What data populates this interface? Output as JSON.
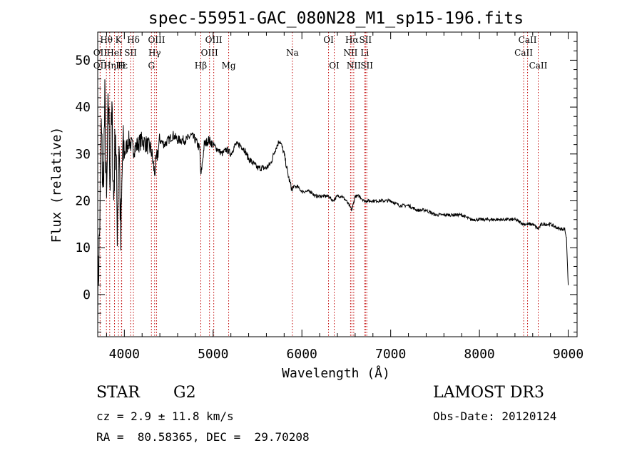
{
  "chart_data": {
    "type": "line",
    "title": "spec-55951-GAC_080N28_M1_sp15-196.fits",
    "xlabel": "Wavelength (Å)",
    "ylabel": "Flux (relative)",
    "xlim": [
      3700,
      9100
    ],
    "ylim": [
      -9,
      56
    ],
    "xticks": [
      4000,
      5000,
      6000,
      7000,
      8000,
      9000
    ],
    "yticks": [
      0,
      10,
      20,
      30,
      40,
      50
    ],
    "grid": false,
    "series": [
      {
        "name": "spectrum",
        "x": [
          3700,
          3720,
          3740,
          3760,
          3780,
          3800,
          3820,
          3840,
          3860,
          3880,
          3900,
          3920,
          3940,
          3960,
          3980,
          4000,
          4050,
          4100,
          4150,
          4200,
          4250,
          4300,
          4340,
          4400,
          4450,
          4500,
          4550,
          4600,
          4650,
          4700,
          4750,
          4800,
          4850,
          4861,
          4900,
          4950,
          5000,
          5050,
          5100,
          5150,
          5200,
          5250,
          5300,
          5350,
          5400,
          5450,
          5500,
          5550,
          5600,
          5650,
          5700,
          5750,
          5800,
          5850,
          5893,
          5900,
          5950,
          6000,
          6050,
          6100,
          6150,
          6200,
          6250,
          6300,
          6350,
          6400,
          6450,
          6500,
          6563,
          6600,
          6650,
          6700,
          6750,
          6800,
          6900,
          7000,
          7100,
          7200,
          7300,
          7400,
          7500,
          7600,
          7700,
          7800,
          7900,
          8000,
          8100,
          8200,
          8300,
          8400,
          8500,
          8542,
          8600,
          8662,
          8700,
          8800,
          8900,
          8960,
          8980,
          9000
        ],
        "y": [
          0,
          12,
          35,
          22,
          40,
          18,
          42,
          25,
          38,
          20,
          36,
          15,
          34,
          10,
          30,
          30,
          33,
          31,
          32,
          33,
          32,
          31,
          26,
          33,
          32,
          33,
          34,
          33,
          33,
          33,
          34,
          33,
          31,
          25,
          32,
          33,
          32,
          31,
          30,
          31,
          30,
          32,
          32,
          31,
          29,
          28,
          27,
          27,
          27,
          28,
          31,
          33,
          30,
          25,
          22,
          23,
          23,
          22,
          22,
          22,
          21,
          21,
          21,
          21,
          20,
          21,
          21,
          20,
          18,
          21,
          21,
          20,
          20,
          20,
          20,
          20,
          19,
          19,
          18,
          18,
          17,
          17,
          17,
          17,
          16,
          16,
          16,
          16,
          16,
          16,
          15,
          15,
          15,
          14,
          15,
          15,
          14,
          14,
          12,
          2
        ]
      }
    ],
    "spectral_lines": [
      {
        "label": "OII",
        "wavelength": 3727,
        "row": 1
      },
      {
        "label": "Hθ",
        "wavelength": 3798,
        "row": 0
      },
      {
        "label": "OII",
        "wavelength": 3727,
        "row": 2
      },
      {
        "label": "Hη",
        "wavelength": 3835,
        "row": 2
      },
      {
        "label": "HeI",
        "wavelength": 3889,
        "row": 1
      },
      {
        "label": "Hε",
        "wavelength": 3970,
        "row": 2
      },
      {
        "label": "K",
        "wavelength": 3934,
        "row": 0
      },
      {
        "label": "SII",
        "wavelength": 4070,
        "row": 1
      },
      {
        "label": "H",
        "wavelength": 3968,
        "row": 2
      },
      {
        "label": "Hδ",
        "wavelength": 4102,
        "row": 0
      },
      {
        "label": "OIII",
        "wavelength": 4363,
        "row": 0
      },
      {
        "label": "Hγ",
        "wavelength": 4341,
        "row": 1
      },
      {
        "label": "G",
        "wavelength": 4305,
        "row": 2
      },
      {
        "label": "Hβ",
        "wavelength": 4861,
        "row": 2
      },
      {
        "label": "OIII",
        "wavelength": 5007,
        "row": 0
      },
      {
        "label": "OIII",
        "wavelength": 4959,
        "row": 1
      },
      {
        "label": "Mg",
        "wavelength": 5175,
        "row": 2
      },
      {
        "label": "Na",
        "wavelength": 5893,
        "row": 1
      },
      {
        "label": "OI",
        "wavelength": 6300,
        "row": 0
      },
      {
        "label": "OI",
        "wavelength": 6364,
        "row": 2
      },
      {
        "label": "Hα",
        "wavelength": 6563,
        "row": 0
      },
      {
        "label": "SII",
        "wavelength": 6716,
        "row": 0
      },
      {
        "label": "NII",
        "wavelength": 6548,
        "row": 1
      },
      {
        "label": "Li",
        "wavelength": 6708,
        "row": 1
      },
      {
        "label": "NII",
        "wavelength": 6584,
        "row": 2
      },
      {
        "label": "SII",
        "wavelength": 6731,
        "row": 2
      },
      {
        "label": "CaII",
        "wavelength": 8542,
        "row": 0
      },
      {
        "label": "CaII",
        "wavelength": 8498,
        "row": 1
      },
      {
        "label": "CaII",
        "wavelength": 8662,
        "row": 2
      }
    ]
  },
  "footer": {
    "object_class": "STAR",
    "subclass": "G2",
    "survey": "LAMOST DR3",
    "redshift": "cz = 2.9 ± 11.8 km/s",
    "obs_date": "Obs-Date: 20120124",
    "coords": "RA =  80.58365, DEC =  29.70208"
  }
}
